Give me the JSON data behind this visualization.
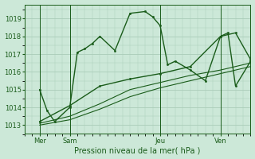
{
  "background_color": "#cce8d8",
  "grid_color": "#aaccb8",
  "line_color": "#1a5c1a",
  "title": "Pression niveau de la mer( hPa )",
  "yticks": [
    1013,
    1014,
    1015,
    1016,
    1017,
    1018,
    1019
  ],
  "ylim": [
    1012.5,
    1019.8
  ],
  "xtick_labels": [
    "Mer",
    "Sam",
    "Jeu",
    "Ven"
  ],
  "xtick_positions": [
    1,
    3,
    9,
    13
  ],
  "xlim": [
    0,
    15
  ],
  "vline_positions": [
    1,
    3,
    9,
    13
  ],
  "series1_x": [
    1,
    1.5,
    2,
    3,
    3.5,
    4,
    4.5,
    5,
    6,
    7,
    8,
    8.5,
    9,
    9.5,
    10,
    11,
    12,
    13,
    13.5,
    14,
    15
  ],
  "series1_y": [
    1015.0,
    1013.8,
    1013.2,
    1014.0,
    1017.1,
    1017.3,
    1017.6,
    1018.0,
    1017.2,
    1019.3,
    1019.4,
    1019.1,
    1018.6,
    1016.4,
    1016.6,
    1016.1,
    1015.5,
    1018.0,
    1018.2,
    1015.2,
    1016.6
  ],
  "series2_x": [
    1,
    3,
    5,
    7,
    9,
    11,
    13,
    14,
    15
  ],
  "series2_y": [
    1013.2,
    1014.1,
    1015.2,
    1015.6,
    1015.9,
    1016.3,
    1018.0,
    1018.2,
    1016.7
  ],
  "series3_x": [
    1,
    3,
    5,
    7,
    9,
    11,
    13,
    15
  ],
  "series3_y": [
    1013.1,
    1013.5,
    1014.2,
    1015.0,
    1015.4,
    1015.8,
    1016.1,
    1016.5
  ],
  "series4_x": [
    1,
    3,
    5,
    7,
    9,
    11,
    13,
    15
  ],
  "series4_y": [
    1013.0,
    1013.3,
    1013.9,
    1014.6,
    1015.1,
    1015.5,
    1015.9,
    1016.3
  ]
}
